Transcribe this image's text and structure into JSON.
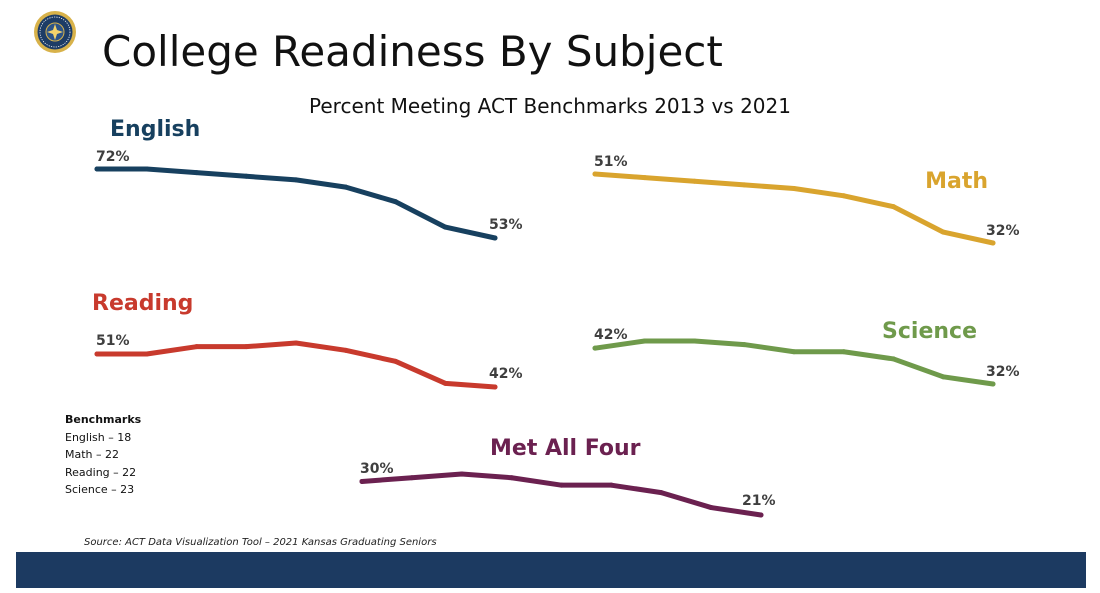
{
  "slide": {
    "title": "College Readiness By Subject",
    "subtitle": "Percent Meeting ACT Benchmarks 2013 vs 2021",
    "benchmarks_heading": "Benchmarks",
    "benchmarks": [
      "English – 18",
      "Math – 22",
      "Reading – 22",
      "Science – 23"
    ],
    "source": "Source: ACT Data Visualization Tool – 2021 Kansas Graduating Seniors",
    "logo_icon": "state-seal-icon",
    "footer_color": "#1c3a61"
  },
  "chart_data": [
    {
      "type": "line",
      "series": [
        {
          "name": "English",
          "color": "#17405f",
          "values": [
            72,
            72,
            71,
            70,
            69,
            67,
            63,
            56,
            53
          ]
        }
      ],
      "start_label": "72%",
      "end_label": "53%"
    },
    {
      "type": "line",
      "series": [
        {
          "name": "Math",
          "color": "#d9a42e",
          "values": [
            51,
            50,
            49,
            48,
            47,
            45,
            42,
            35,
            32
          ]
        }
      ],
      "start_label": "51%",
      "end_label": "32%"
    },
    {
      "type": "line",
      "series": [
        {
          "name": "Reading",
          "color": "#c83a2d",
          "values": [
            51,
            51,
            53,
            53,
            54,
            52,
            49,
            43,
            42
          ]
        }
      ],
      "start_label": "51%",
      "end_label": "42%"
    },
    {
      "type": "line",
      "series": [
        {
          "name": "Science",
          "color": "#6f9a4b",
          "values": [
            42,
            44,
            44,
            43,
            41,
            41,
            39,
            34,
            32
          ]
        }
      ],
      "start_label": "42%",
      "end_label": "32%"
    },
    {
      "type": "line",
      "series": [
        {
          "name": "Met All Four",
          "color": "#6b2150",
          "values": [
            30,
            31,
            32,
            31,
            29,
            29,
            27,
            23,
            21
          ]
        }
      ],
      "start_label": "30%",
      "end_label": "21%"
    }
  ]
}
